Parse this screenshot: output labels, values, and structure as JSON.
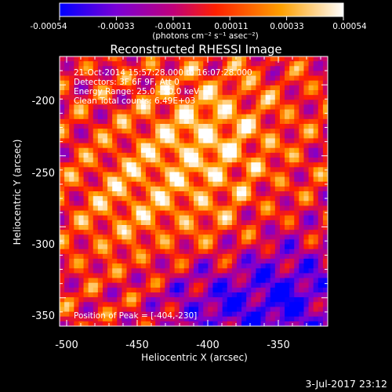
{
  "colorbar": {
    "min": -0.00054,
    "max": 0.00054,
    "tick_labels": [
      "-0.00054",
      "-0.00033",
      "-0.00011",
      "0.00011",
      "0.00033",
      "0.00054"
    ],
    "unit_label": "(photons cm⁻² s⁻¹ asec⁻²)",
    "colors": [
      "#0000ff",
      "#7a00d6",
      "#c0007a",
      "#ff2000",
      "#ffa000",
      "#ffffff"
    ]
  },
  "title": "Reconstructed RHESSI Image",
  "info": {
    "line1": "21-Oct-2014 15:57:28.000 to 16:07:28.000",
    "line2": "Detectors: 3F 6F 9F, Att 0",
    "line3": "Energy Range: 25.0 - 50.0 keV",
    "line4": "Clean     Total counts: 6.49E+03",
    "peak": "Position of Peak = [-404,-230]"
  },
  "axes": {
    "x_label": "Heliocentric X (arcsec)",
    "y_label": "Heliocentric Y (arcsec)",
    "x_ticks": [
      "-500",
      "-450",
      "-400",
      "-350"
    ],
    "y_ticks": [
      "-200",
      "-250",
      "-300",
      "-350"
    ]
  },
  "timestamp": "3-Jul-2017 23:12",
  "chart_data": {
    "type": "heatmap",
    "title": "Reconstructed RHESSI Image",
    "xlabel": "Heliocentric X (arcsec)",
    "ylabel": "Heliocentric Y (arcsec)",
    "xlim": [
      -505,
      -315
    ],
    "ylim": [
      -370,
      -180
    ],
    "x_ticks": [
      -500,
      -450,
      -400,
      -350
    ],
    "y_ticks": [
      -200,
      -250,
      -300,
      -350
    ],
    "peak": [
      -404,
      -230
    ],
    "colorbar_range": [
      -0.00054,
      0.00054
    ]
  }
}
